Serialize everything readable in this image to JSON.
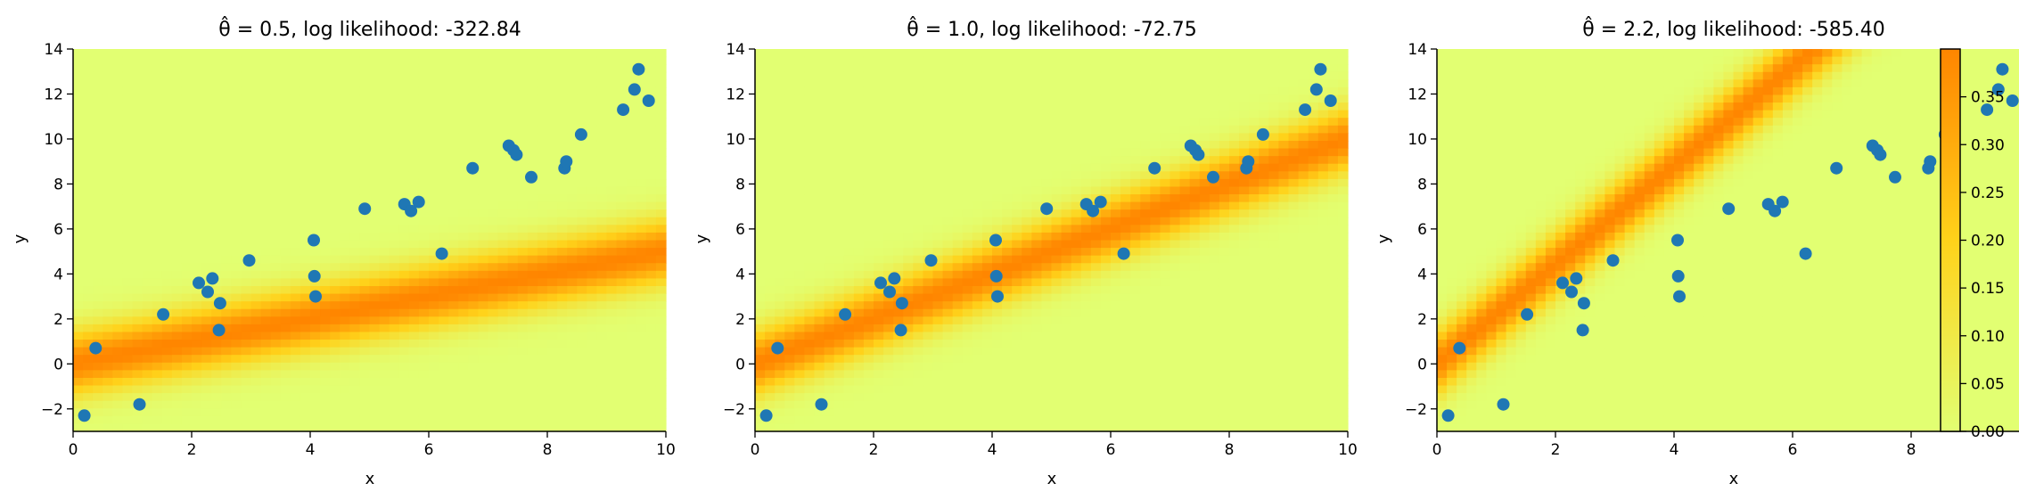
{
  "chart_data": {
    "type": "scatter",
    "points": {
      "x": [
        0.19,
        0.38,
        1.12,
        1.52,
        2.12,
        2.27,
        2.35,
        2.46,
        2.48,
        2.97,
        4.06,
        4.07,
        4.09,
        4.92,
        5.59,
        5.7,
        5.83,
        6.22,
        6.74,
        7.35,
        7.43,
        7.48,
        7.73,
        8.29,
        8.32,
        8.57,
        9.28,
        9.47,
        9.54,
        9.71
      ],
      "y": [
        -2.3,
        0.7,
        -1.8,
        2.2,
        3.6,
        3.2,
        3.8,
        1.5,
        2.7,
        4.6,
        5.5,
        3.9,
        3.0,
        6.9,
        7.1,
        6.8,
        7.2,
        4.9,
        8.7,
        9.7,
        9.5,
        9.3,
        8.3,
        8.7,
        9.0,
        10.2,
        11.3,
        12.2,
        13.1,
        11.7
      ]
    },
    "charts": [
      {
        "type": "heatmap+scatter",
        "theta": 0.5,
        "title": "θ̂ = 0.5, log likelihood: -322.84",
        "xlabel": "x",
        "ylabel": "y",
        "xlim": [
          0,
          10
        ],
        "ylim": [
          -3,
          14
        ]
      },
      {
        "type": "heatmap+scatter",
        "theta": 1.0,
        "title": "θ̂ = 1.0, log likelihood: -72.75",
        "xlabel": "x",
        "ylabel": "y",
        "xlim": [
          0,
          10
        ],
        "ylim": [
          -3,
          14
        ]
      },
      {
        "type": "heatmap+scatter",
        "theta": 2.2,
        "title": "θ̂ = 2.2, log likelihood: -585.40",
        "xlabel": "x",
        "ylabel": "y",
        "xlim": [
          0,
          10
        ],
        "ylim": [
          -3,
          14
        ]
      }
    ],
    "x_ticks": [
      "0",
      "2",
      "4",
      "6",
      "8",
      "10"
    ],
    "y_ticks": [
      "−2",
      "0",
      "2",
      "4",
      "6",
      "8",
      "10",
      "12",
      "14"
    ],
    "colorbar": {
      "range": [
        0,
        0.4
      ],
      "ticks": [
        "0.00",
        "0.05",
        "0.10",
        "0.15",
        "0.20",
        "0.25",
        "0.30",
        "0.35"
      ]
    },
    "colors": {
      "low": "#e2ff72",
      "mid": "#ffd21a",
      "high": "#ff8500",
      "points": "#1f77b4"
    },
    "grid": false
  }
}
